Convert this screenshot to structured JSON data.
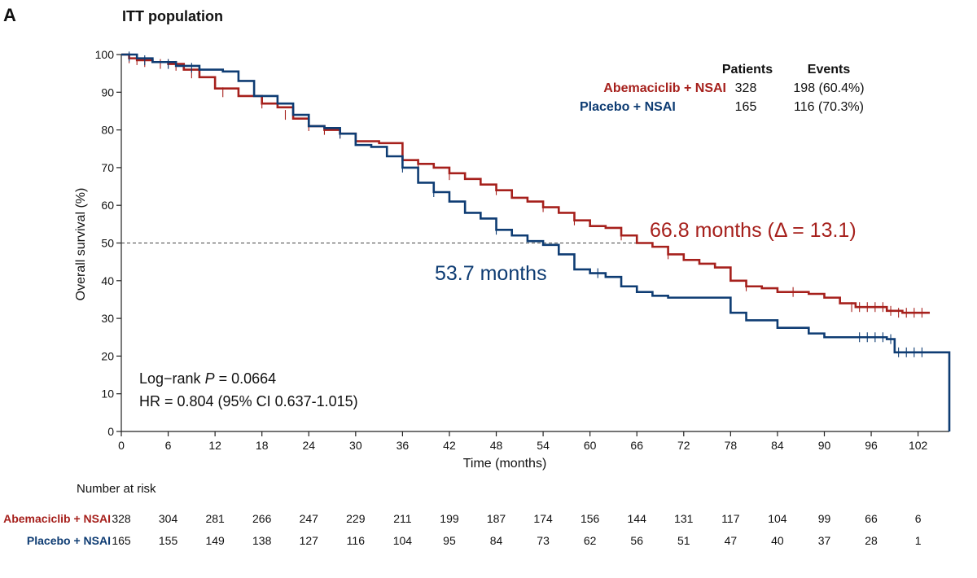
{
  "panel_label": "A",
  "title": "ITT population",
  "colors": {
    "red": "#a6201c",
    "blue": "#0e3c73",
    "axis": "#222222",
    "dash": "#444444"
  },
  "chart_data": {
    "type": "line",
    "step": true,
    "xlabel": "Time (months)",
    "ylabel": "Overall survival (%)",
    "xlim": [
      0,
      106
    ],
    "ylim": [
      0,
      100
    ],
    "xticks": [
      0,
      6,
      12,
      18,
      24,
      30,
      36,
      42,
      48,
      54,
      60,
      66,
      72,
      78,
      84,
      90,
      96,
      102
    ],
    "yticks": [
      0,
      10,
      20,
      30,
      40,
      50,
      60,
      70,
      80,
      90,
      100
    ],
    "reference_line": {
      "y": 50,
      "style": "dashed"
    },
    "legend": {
      "headers": [
        "Patients",
        "Events"
      ],
      "rows": [
        {
          "label": "Abemaciclib + NSAI",
          "patients": "328",
          "events": "198 (60.4%)"
        },
        {
          "label": "Placebo + NSAI",
          "patients": "165",
          "events": "116 (70.3%)"
        }
      ]
    },
    "series": [
      {
        "name": "Abemaciclib + NSAI",
        "color_key": "red",
        "points": [
          [
            0,
            100
          ],
          [
            1,
            99
          ],
          [
            2,
            98.5
          ],
          [
            4,
            98
          ],
          [
            6,
            97.5
          ],
          [
            8,
            96
          ],
          [
            10,
            94
          ],
          [
            12,
            91
          ],
          [
            15,
            89
          ],
          [
            18,
            87
          ],
          [
            20,
            86
          ],
          [
            22,
            83
          ],
          [
            24,
            81
          ],
          [
            26,
            80
          ],
          [
            28,
            79
          ],
          [
            30,
            77
          ],
          [
            33,
            76.5
          ],
          [
            36,
            72
          ],
          [
            38,
            71
          ],
          [
            40,
            70
          ],
          [
            42,
            68.5
          ],
          [
            44,
            67
          ],
          [
            46,
            65.5
          ],
          [
            48,
            64
          ],
          [
            50,
            62
          ],
          [
            52,
            61
          ],
          [
            54,
            59.5
          ],
          [
            56,
            58
          ],
          [
            58,
            56
          ],
          [
            60,
            54.5
          ],
          [
            62,
            54
          ],
          [
            64,
            52
          ],
          [
            66,
            50
          ],
          [
            68,
            49
          ],
          [
            70,
            47
          ],
          [
            72,
            45.5
          ],
          [
            74,
            44.5
          ],
          [
            76,
            43.5
          ],
          [
            78,
            40
          ],
          [
            80,
            38.5
          ],
          [
            82,
            38
          ],
          [
            84,
            37
          ],
          [
            86,
            37
          ],
          [
            88,
            36.5
          ],
          [
            90,
            35.5
          ],
          [
            92,
            34
          ],
          [
            94,
            33
          ],
          [
            96,
            33
          ],
          [
            98,
            32
          ],
          [
            100,
            31.5
          ],
          [
            103.5,
            31.5
          ]
        ],
        "censor_marks": [
          [
            1,
            99
          ],
          [
            2,
            98.5
          ],
          [
            3,
            98
          ],
          [
            5,
            97.5
          ],
          [
            6,
            97.5
          ],
          [
            7,
            97
          ],
          [
            9,
            95
          ],
          [
            13,
            90
          ],
          [
            18,
            87
          ],
          [
            21,
            84
          ],
          [
            24,
            81
          ],
          [
            26,
            80
          ],
          [
            28,
            79
          ],
          [
            36,
            72
          ],
          [
            38,
            71
          ],
          [
            42,
            68
          ],
          [
            48,
            64
          ],
          [
            54,
            59.5
          ],
          [
            58,
            56
          ],
          [
            64,
            52
          ],
          [
            70,
            47
          ],
          [
            80,
            38.5
          ],
          [
            86,
            37
          ],
          [
            93.5,
            33
          ],
          [
            94.5,
            33
          ],
          [
            95.5,
            33
          ],
          [
            96.5,
            33
          ],
          [
            97.5,
            33
          ],
          [
            98.5,
            32
          ],
          [
            99.5,
            31.5
          ],
          [
            100.5,
            31.5
          ],
          [
            101.5,
            31.5
          ],
          [
            102.5,
            31.5
          ]
        ]
      },
      {
        "name": "Placebo + NSAI",
        "color_key": "blue",
        "points": [
          [
            0,
            100
          ],
          [
            2,
            99
          ],
          [
            4,
            98
          ],
          [
            7,
            97
          ],
          [
            10,
            96
          ],
          [
            13,
            95.5
          ],
          [
            15,
            93
          ],
          [
            17,
            89
          ],
          [
            20,
            87
          ],
          [
            22,
            84
          ],
          [
            24,
            81
          ],
          [
            26,
            80.5
          ],
          [
            28,
            79
          ],
          [
            30,
            76
          ],
          [
            32,
            75.5
          ],
          [
            34,
            73
          ],
          [
            36,
            70
          ],
          [
            38,
            66
          ],
          [
            40,
            63.5
          ],
          [
            42,
            61
          ],
          [
            44,
            58
          ],
          [
            46,
            56.5
          ],
          [
            48,
            53.5
          ],
          [
            50,
            52
          ],
          [
            52,
            50.5
          ],
          [
            54,
            49.5
          ],
          [
            56,
            47
          ],
          [
            58,
            43
          ],
          [
            60,
            42
          ],
          [
            62,
            41
          ],
          [
            64,
            38.5
          ],
          [
            66,
            37
          ],
          [
            68,
            36
          ],
          [
            70,
            35.5
          ],
          [
            76,
            35.5
          ],
          [
            78,
            31.5
          ],
          [
            80,
            29.5
          ],
          [
            82,
            29.5
          ],
          [
            84,
            27.5
          ],
          [
            86,
            27.5
          ],
          [
            88,
            26
          ],
          [
            90,
            25
          ],
          [
            94,
            25
          ],
          [
            96,
            25
          ],
          [
            98,
            24.5
          ],
          [
            99,
            21
          ],
          [
            104,
            21
          ],
          [
            106,
            21
          ],
          [
            106,
            0
          ]
        ],
        "censor_marks": [
          [
            1,
            99.5
          ],
          [
            3,
            98.5
          ],
          [
            6,
            97.5
          ],
          [
            9,
            96.5
          ],
          [
            28,
            79
          ],
          [
            36,
            70
          ],
          [
            40,
            63.5
          ],
          [
            48,
            53.5
          ],
          [
            61,
            42
          ],
          [
            94.5,
            25
          ],
          [
            95.5,
            25
          ],
          [
            96.5,
            25
          ],
          [
            97.5,
            25
          ],
          [
            98.5,
            24.5
          ],
          [
            99.5,
            21
          ],
          [
            100.5,
            21
          ],
          [
            101.5,
            21
          ],
          [
            102.5,
            21
          ]
        ]
      }
    ],
    "annotations": [
      {
        "text": "66.8 months (Δ = 13.1)",
        "color_key": "red"
      },
      {
        "text": "53.7 months",
        "color_key": "blue"
      }
    ],
    "stats": {
      "logrank_prefix": "Log−rank ",
      "logrank_p": "P",
      "logrank_value": " = 0.0664",
      "hr": "HR =  0.804 (95% CI 0.637-1.015)"
    }
  },
  "risk_table": {
    "title": "Number at risk",
    "rows": [
      {
        "label": "Abemaciclib + NSAI",
        "color_key": "red",
        "values": [
          "328",
          "304",
          "281",
          "266",
          "247",
          "229",
          "211",
          "199",
          "187",
          "174",
          "156",
          "144",
          "131",
          "117",
          "104",
          "99",
          "66",
          "6"
        ]
      },
      {
        "label": "Placebo + NSAI",
        "color_key": "blue",
        "values": [
          "165",
          "155",
          "149",
          "138",
          "127",
          "116",
          "104",
          "95",
          "84",
          "73",
          "62",
          "56",
          "51",
          "47",
          "40",
          "37",
          "28",
          "1"
        ]
      }
    ]
  }
}
